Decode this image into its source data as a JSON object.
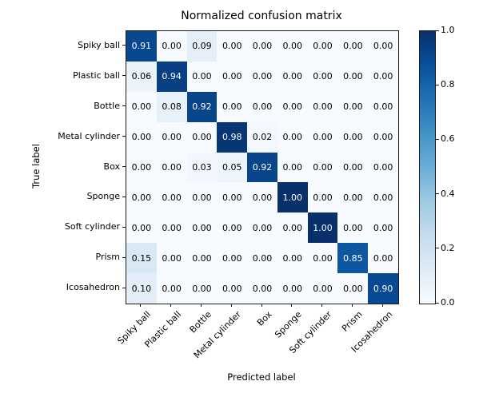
{
  "chart_data": {
    "type": "heatmap",
    "title": "Normalized confusion matrix",
    "xlabel": "Predicted label",
    "ylabel": "True label",
    "categories": [
      "Spiky ball",
      "Plastic ball",
      "Bottle",
      "Metal cylinder",
      "Box",
      "Sponge",
      "Soft cylinder",
      "Prism",
      "Icosahedron"
    ],
    "matrix": [
      [
        0.91,
        0.0,
        0.09,
        0.0,
        0.0,
        0.0,
        0.0,
        0.0,
        0.0
      ],
      [
        0.06,
        0.94,
        0.0,
        0.0,
        0.0,
        0.0,
        0.0,
        0.0,
        0.0
      ],
      [
        0.0,
        0.08,
        0.92,
        0.0,
        0.0,
        0.0,
        0.0,
        0.0,
        0.0
      ],
      [
        0.0,
        0.0,
        0.0,
        0.98,
        0.02,
        0.0,
        0.0,
        0.0,
        0.0
      ],
      [
        0.0,
        0.0,
        0.03,
        0.05,
        0.92,
        0.0,
        0.0,
        0.0,
        0.0
      ],
      [
        0.0,
        0.0,
        0.0,
        0.0,
        0.0,
        1.0,
        0.0,
        0.0,
        0.0
      ],
      [
        0.0,
        0.0,
        0.0,
        0.0,
        0.0,
        0.0,
        1.0,
        0.0,
        0.0
      ],
      [
        0.15,
        0.0,
        0.0,
        0.0,
        0.0,
        0.0,
        0.0,
        0.85,
        0.0
      ],
      [
        0.1,
        0.0,
        0.0,
        0.0,
        0.0,
        0.0,
        0.0,
        0.0,
        0.9
      ]
    ],
    "vmin": 0.0,
    "vmax": 1.0,
    "grid": false,
    "colormap": "Blues",
    "colormap_anchors": [
      "#f7fbff",
      "#deebf7",
      "#c6dbef",
      "#9ecae1",
      "#6baed6",
      "#4292c6",
      "#2171b5",
      "#08519c",
      "#08306b"
    ],
    "colorbar_ticks": [
      1.0,
      0.8,
      0.6,
      0.4,
      0.2,
      0.0
    ],
    "colorbar_position": "right",
    "x_tick_rotation_deg": 45,
    "cell_value_decimals": 2,
    "text_color_threshold": 0.5,
    "cell_text_colors": {
      "above_threshold": "#ffffff",
      "below_threshold": "#000000"
    },
    "spine_color": "#1a1a1a"
  }
}
